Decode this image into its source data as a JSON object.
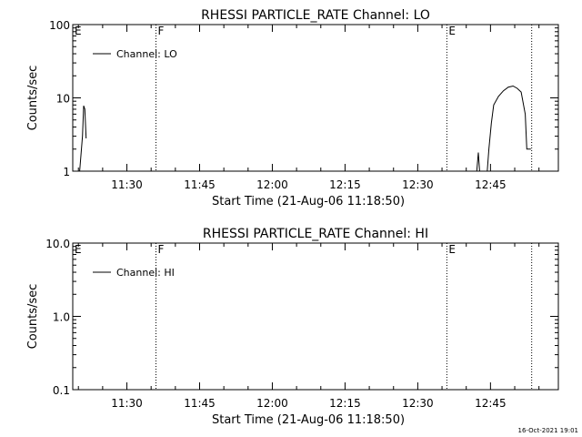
{
  "footer": {
    "timestamp": "16-Oct-2021 19:01"
  },
  "chart_data": [
    {
      "type": "line",
      "title": "RHESSI PARTICLE_RATE Channel: LO",
      "xlabel": "Start Time (21-Aug-06 11:18:50)",
      "ylabel": "Counts/sec",
      "y_scale": "log",
      "xlim": [
        "11:18:50",
        "12:59:00"
      ],
      "ylim": [
        1,
        100
      ],
      "x_ticks": [
        "11:30",
        "11:45",
        "12:00",
        "12:15",
        "12:30",
        "12:45"
      ],
      "y_ticks": [
        "1",
        "10",
        "100"
      ],
      "legend": {
        "position": "top-left",
        "entries": [
          "Channel: LO"
        ]
      },
      "grid": false,
      "markers": [
        {
          "label": "E",
          "time": "11:18:50",
          "style": "dotted"
        },
        {
          "label": "F",
          "time": "11:36:00",
          "style": "dotted"
        },
        {
          "label": "E",
          "time": "12:36:00",
          "style": "dotted"
        },
        {
          "label": "",
          "time": "12:53:30",
          "style": "dotted"
        }
      ],
      "series": [
        {
          "name": "Channel: LO",
          "segments": [
            [
              [
                "11:20:15",
                1.0
              ],
              [
                "11:20:50",
                3.0
              ],
              [
                "11:21:05",
                7.8
              ],
              [
                "11:21:20",
                7.0
              ],
              [
                "11:21:35",
                2.8
              ]
            ],
            [
              [
                "12:42:10",
                1.0
              ],
              [
                "12:42:30",
                1.8
              ],
              [
                "12:42:45",
                1.0
              ]
            ],
            [
              [
                "12:44:20",
                1.0
              ],
              [
                "12:44:40",
                2.0
              ],
              [
                "12:45:10",
                4.5
              ],
              [
                "12:45:40",
                8.0
              ],
              [
                "12:46:40",
                10.5
              ],
              [
                "12:47:40",
                12.5
              ],
              [
                "12:48:40",
                14.0
              ],
              [
                "12:49:40",
                14.5
              ],
              [
                "12:50:30",
                13.5
              ],
              [
                "12:51:20",
                12.0
              ],
              [
                "12:52:10",
                6.0
              ],
              [
                "12:52:30",
                2.0
              ],
              [
                "12:53:20",
                2.0
              ]
            ]
          ]
        }
      ]
    },
    {
      "type": "line",
      "title": "RHESSI PARTICLE_RATE Channel: HI",
      "xlabel": "Start Time (21-Aug-06 11:18:50)",
      "ylabel": "Counts/sec",
      "y_scale": "log",
      "xlim": [
        "11:18:50",
        "12:59:00"
      ],
      "ylim": [
        0.1,
        10
      ],
      "x_ticks": [
        "11:30",
        "11:45",
        "12:00",
        "12:15",
        "12:30",
        "12:45"
      ],
      "y_ticks": [
        "0.1",
        "1.0",
        "10.0"
      ],
      "legend": {
        "position": "top-left",
        "entries": [
          "Channel: HI"
        ]
      },
      "grid": false,
      "markers": [
        {
          "label": "E",
          "time": "11:18:50",
          "style": "dotted"
        },
        {
          "label": "F",
          "time": "11:36:00",
          "style": "dotted"
        },
        {
          "label": "E",
          "time": "12:36:00",
          "style": "dotted"
        },
        {
          "label": "",
          "time": "12:53:30",
          "style": "dotted"
        }
      ],
      "series": [
        {
          "name": "Channel: HI",
          "segments": []
        }
      ]
    }
  ]
}
